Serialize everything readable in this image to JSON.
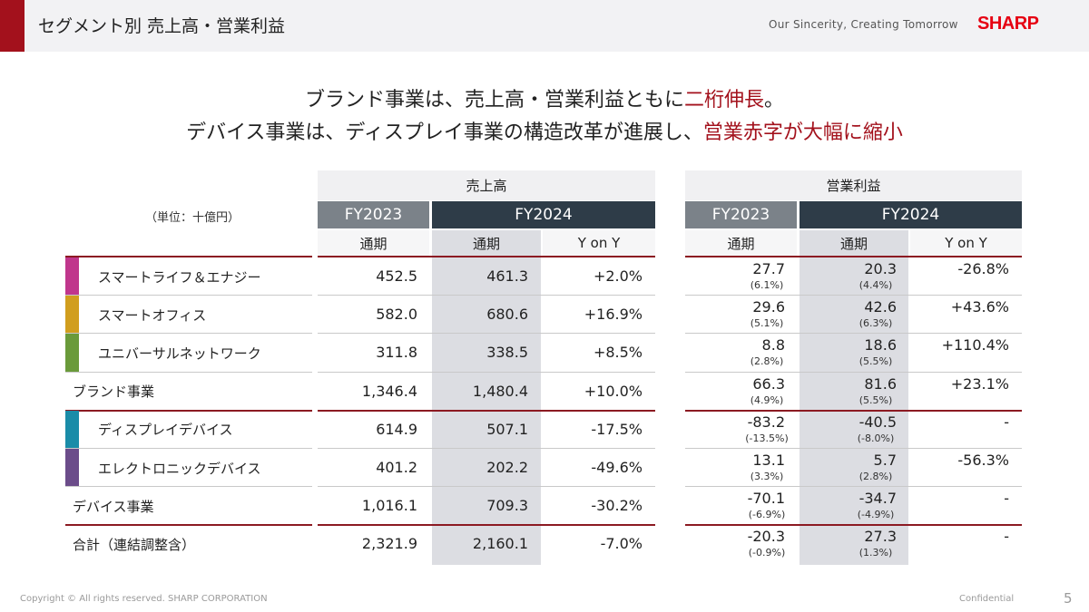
{
  "header": {
    "title": "セグメント別 売上高・営業利益",
    "tagline": "Our Sincerity, Creating Tomorrow",
    "logo": "SHARP"
  },
  "headline": {
    "line1_pre": "ブランド事業は、売上高・営業利益ともに",
    "line1_hl": "二桁伸長",
    "line1_post": "。",
    "line2_pre": "デバイス事業は、ディスプレイ事業の構造改革が進展し、",
    "line2_hl": "営業赤字が大幅に縮小"
  },
  "colors": {
    "accent": "#a3111c",
    "fy_old": "#7b8289",
    "fy_new": "#2e3c48",
    "shade": "#dcdde2"
  },
  "unit_label": "（単位：十億円）",
  "sales": {
    "title": "売上高",
    "fy_old": "FY2023",
    "fy_new": "FY2024",
    "col_old": "通期",
    "col_new": "通期",
    "col_yoy": "Y on Y"
  },
  "profit": {
    "title": "営業利益",
    "fy_old": "FY2023",
    "fy_new": "FY2024",
    "col_old": "通期",
    "col_new": "通期",
    "col_yoy": "Y on Y"
  },
  "rows": [
    {
      "label": "スマートライフ＆エナジー",
      "swatch": "#c0368c",
      "indent": true,
      "s23": "452.5",
      "s24": "461.3",
      "syoy": "+2.0%",
      "p23": "27.7",
      "p23m": "(6.1%)",
      "p24": "20.3",
      "p24m": "(4.4%)",
      "pyoy": "-26.8%"
    },
    {
      "label": "スマートオフィス",
      "swatch": "#d19e1e",
      "indent": true,
      "s23": "582.0",
      "s24": "680.6",
      "syoy": "+16.9%",
      "p23": "29.6",
      "p23m": "(5.1%)",
      "p24": "42.6",
      "p24m": "(6.3%)",
      "pyoy": "+43.6%"
    },
    {
      "label": "ユニバーサルネットワーク",
      "swatch": "#6a9a3a",
      "indent": true,
      "s23": "311.8",
      "s24": "338.5",
      "syoy": "+8.5%",
      "p23": "8.8",
      "p23m": "(2.8%)",
      "p24": "18.6",
      "p24m": "(5.5%)",
      "pyoy": "+110.4%"
    },
    {
      "label": "ブランド事業",
      "swatch": "",
      "indent": false,
      "s23": "1,346.4",
      "s24": "1,480.4",
      "syoy": "+10.0%",
      "p23": "66.3",
      "p23m": "(4.9%)",
      "p24": "81.6",
      "p24m": "(5.5%)",
      "pyoy": "+23.1%"
    },
    {
      "label": "ディスプレイデバイス",
      "swatch": "#1a8ca8",
      "indent": true,
      "s23": "614.9",
      "s24": "507.1",
      "syoy": "-17.5%",
      "p23": "-83.2",
      "p23m": "(-13.5%)",
      "p24": "-40.5",
      "p24m": "(-8.0%)",
      "pyoy": "-"
    },
    {
      "label": "エレクトロニックデバイス",
      "swatch": "#6b4c8a",
      "indent": true,
      "s23": "401.2",
      "s24": "202.2",
      "syoy": "-49.6%",
      "p23": "13.1",
      "p23m": "(3.3%)",
      "p24": "5.7",
      "p24m": "(2.8%)",
      "pyoy": "-56.3%"
    },
    {
      "label": "デバイス事業",
      "swatch": "",
      "indent": false,
      "s23": "1,016.1",
      "s24": "709.3",
      "syoy": "-30.2%",
      "p23": "-70.1",
      "p23m": "(-6.9%)",
      "p24": "-34.7",
      "p24m": "(-4.9%)",
      "pyoy": "-"
    },
    {
      "label": "合計（連結調整含）",
      "swatch": "",
      "indent": false,
      "s23": "2,321.9",
      "s24": "2,160.1",
      "syoy": "-7.0%",
      "p23": "-20.3",
      "p23m": "(-0.9%)",
      "p24": "27.3",
      "p24m": "(1.3%)",
      "pyoy": "-"
    }
  ],
  "footer": {
    "copyright": "Copyright © All rights reserved. SHARP CORPORATION",
    "confidential": "Confidential",
    "page": "5"
  }
}
